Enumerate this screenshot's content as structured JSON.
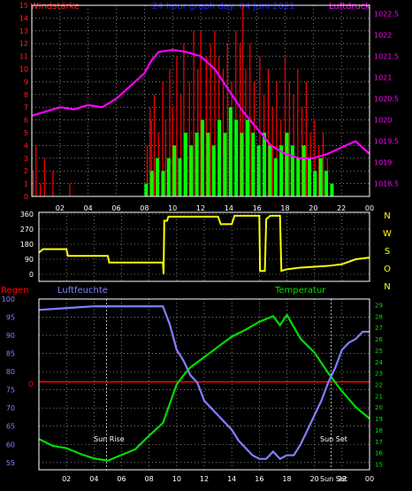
{
  "colors": {
    "background": "#000000",
    "frame": "#ffffff",
    "grid": "#cccccc",
    "wind_label": "#ff2020",
    "wind_gust": "#ff0000",
    "wind_avg": "#00ff00",
    "title": "#2020ff",
    "pressure": "#ff00ff",
    "direction": "#ffff00",
    "direction_letters": "#ffff00",
    "rain": "#ff0000",
    "humidity": "#8080ff",
    "temperature": "#00dd00",
    "hour_tick": "#ffffff",
    "sun_label": "#ffffff"
  },
  "header": {
    "wind_label": "Windstärke",
    "title": "24 hour graph day: 04 Juni 2021",
    "pressure_label": "Luftdruck"
  },
  "bottom_header": {
    "rain_label": "Regen",
    "humidity_label": "Luftfeuchte",
    "temperature_label": "Temperatur"
  },
  "hour_ticks": [
    "02",
    "04",
    "06",
    "08",
    "10",
    "12",
    "14",
    "16",
    "18",
    "20",
    "22",
    "00"
  ],
  "direction_letters": [
    "N",
    "W",
    "S",
    "O",
    "N"
  ],
  "sun_labels": {
    "rise": "Sun Rise",
    "set": "Sun Set",
    "set_short": "Sun Set"
  },
  "chart_data": [
    {
      "type": "bar+line",
      "name": "wind_pressure",
      "left_axis": {
        "label": "Windstärke",
        "ticks": [
          "0",
          "1",
          "2",
          "3",
          "4",
          "5",
          "6",
          "7",
          "8",
          "9",
          "10",
          "11",
          "12",
          "13",
          "14",
          "15"
        ],
        "range": [
          0,
          15
        ]
      },
      "right_axis": {
        "label": "Luftdruck",
        "ticks": [
          "1018.5",
          "1019",
          "1019.5",
          "1020",
          "1020.5",
          "1021",
          "1021.5",
          "1022",
          "1022.5"
        ],
        "range": [
          1018.2,
          1022.7
        ]
      },
      "x_hours": [
        0,
        24
      ],
      "gust_peaks": [
        [
          0.1,
          2
        ],
        [
          0.3,
          4
        ],
        [
          0.6,
          1
        ],
        [
          0.9,
          3
        ],
        [
          1.5,
          2
        ],
        [
          2.7,
          1
        ],
        [
          8.2,
          4
        ],
        [
          8.4,
          7
        ],
        [
          8.5,
          6
        ],
        [
          8.7,
          8
        ],
        [
          9.0,
          5
        ],
        [
          9.3,
          9
        ],
        [
          9.5,
          6
        ],
        [
          9.8,
          10
        ],
        [
          10.0,
          7
        ],
        [
          10.3,
          11
        ],
        [
          10.6,
          8
        ],
        [
          10.8,
          12
        ],
        [
          11.2,
          9
        ],
        [
          11.5,
          13
        ],
        [
          11.8,
          10
        ],
        [
          12.0,
          13
        ],
        [
          12.4,
          11
        ],
        [
          12.7,
          12
        ],
        [
          13.0,
          13
        ],
        [
          13.3,
          11
        ],
        [
          13.6,
          10
        ],
        [
          13.9,
          12
        ],
        [
          14.2,
          9
        ],
        [
          14.5,
          13
        ],
        [
          14.8,
          12
        ],
        [
          15.0,
          15
        ],
        [
          15.2,
          10
        ],
        [
          15.5,
          12
        ],
        [
          15.8,
          9
        ],
        [
          16.2,
          11
        ],
        [
          16.5,
          8
        ],
        [
          16.8,
          10
        ],
        [
          17.1,
          7
        ],
        [
          17.4,
          9
        ],
        [
          17.7,
          6
        ],
        [
          18.0,
          11
        ],
        [
          18.3,
          9
        ],
        [
          18.6,
          8
        ],
        [
          18.9,
          10
        ],
        [
          19.2,
          7
        ],
        [
          19.5,
          9
        ],
        [
          19.8,
          5
        ],
        [
          20.1,
          6
        ],
        [
          20.4,
          4
        ],
        [
          20.7,
          5
        ],
        [
          21.0,
          3
        ]
      ],
      "avg_values": [
        [
          8.0,
          1
        ],
        [
          8.4,
          2
        ],
        [
          8.8,
          3
        ],
        [
          9.2,
          2
        ],
        [
          9.6,
          3
        ],
        [
          10.0,
          4
        ],
        [
          10.4,
          3
        ],
        [
          10.8,
          5
        ],
        [
          11.2,
          4
        ],
        [
          11.6,
          5
        ],
        [
          12.0,
          6
        ],
        [
          12.4,
          5
        ],
        [
          12.8,
          4
        ],
        [
          13.2,
          6
        ],
        [
          13.6,
          5
        ],
        [
          14.0,
          7
        ],
        [
          14.4,
          6
        ],
        [
          14.8,
          5
        ],
        [
          15.2,
          6
        ],
        [
          15.6,
          5
        ],
        [
          16.0,
          4
        ],
        [
          16.4,
          5
        ],
        [
          16.8,
          4
        ],
        [
          17.2,
          3
        ],
        [
          17.6,
          4
        ],
        [
          18.0,
          5
        ],
        [
          18.4,
          4
        ],
        [
          18.8,
          3
        ],
        [
          19.2,
          4
        ],
        [
          19.6,
          3
        ],
        [
          20.0,
          2
        ],
        [
          20.4,
          3
        ],
        [
          20.8,
          2
        ],
        [
          21.2,
          1
        ]
      ],
      "pressure": [
        [
          0,
          1020.1
        ],
        [
          1,
          1020.2
        ],
        [
          2,
          1020.3
        ],
        [
          3,
          1020.25
        ],
        [
          4,
          1020.35
        ],
        [
          5,
          1020.3
        ],
        [
          6,
          1020.5
        ],
        [
          7,
          1020.8
        ],
        [
          8,
          1021.1
        ],
        [
          8.5,
          1021.4
        ],
        [
          9,
          1021.6
        ],
        [
          10,
          1021.65
        ],
        [
          11,
          1021.6
        ],
        [
          12,
          1021.5
        ],
        [
          13,
          1021.2
        ],
        [
          14,
          1020.7
        ],
        [
          15,
          1020.2
        ],
        [
          16,
          1019.8
        ],
        [
          17,
          1019.4
        ],
        [
          18,
          1019.2
        ],
        [
          19,
          1019.1
        ],
        [
          20,
          1019.1
        ],
        [
          21,
          1019.2
        ],
        [
          22,
          1019.35
        ],
        [
          23,
          1019.5
        ],
        [
          24,
          1019.2
        ]
      ]
    },
    {
      "type": "line",
      "name": "wind_direction",
      "left_axis": {
        "ticks": [
          "0",
          "90",
          "180",
          "270",
          "360"
        ],
        "range": [
          0,
          360
        ]
      },
      "x_hours": [
        0,
        24
      ],
      "values": [
        [
          0,
          130
        ],
        [
          0.3,
          150
        ],
        [
          2,
          150
        ],
        [
          2.1,
          110
        ],
        [
          5,
          110
        ],
        [
          5.1,
          70
        ],
        [
          9,
          70
        ],
        [
          9.05,
          0
        ],
        [
          9.1,
          320
        ],
        [
          9.3,
          320
        ],
        [
          9.4,
          345
        ],
        [
          13,
          345
        ],
        [
          13.2,
          300
        ],
        [
          14,
          300
        ],
        [
          14.2,
          350
        ],
        [
          16,
          350
        ],
        [
          16.05,
          20
        ],
        [
          16.4,
          20
        ],
        [
          16.5,
          330
        ],
        [
          16.8,
          350
        ],
        [
          17.5,
          350
        ],
        [
          17.6,
          20
        ],
        [
          18,
          30
        ],
        [
          19,
          40
        ],
        [
          21,
          50
        ],
        [
          22,
          60
        ],
        [
          23,
          90
        ],
        [
          24,
          100
        ]
      ]
    },
    {
      "type": "line",
      "name": "humidity_temperature",
      "left_axis": {
        "label": "Luftfeuchte",
        "ticks": [
          "55",
          "60",
          "65",
          "70",
          "75",
          "80",
          "85",
          "90",
          "95",
          "100"
        ],
        "range": [
          53,
          100
        ]
      },
      "right_axis": {
        "label": "Temperatur",
        "ticks": [
          "15",
          "16",
          "17",
          "18",
          "19",
          "20",
          "21",
          "22",
          "23",
          "24",
          "25",
          "26",
          "27",
          "28",
          "29"
        ],
        "range": [
          14.5,
          29.5
        ]
      },
      "rain_value": 0,
      "rain_axis_label": "0",
      "x_hours": [
        0,
        24
      ],
      "humidity": [
        [
          0,
          97
        ],
        [
          2,
          97.5
        ],
        [
          4,
          98
        ],
        [
          6,
          98
        ],
        [
          7,
          98
        ],
        [
          8,
          98
        ],
        [
          9,
          98
        ],
        [
          9.5,
          93
        ],
        [
          10,
          86
        ],
        [
          10.5,
          83
        ],
        [
          11,
          79
        ],
        [
          11.5,
          77
        ],
        [
          12,
          72
        ],
        [
          12.5,
          70
        ],
        [
          13,
          68
        ],
        [
          13.5,
          66
        ],
        [
          14,
          64
        ],
        [
          14.5,
          61
        ],
        [
          15,
          59
        ],
        [
          15.5,
          57
        ],
        [
          16,
          56
        ],
        [
          16.5,
          56
        ],
        [
          17,
          58
        ],
        [
          17.5,
          56
        ],
        [
          18,
          57
        ],
        [
          18.5,
          57
        ],
        [
          19,
          60
        ],
        [
          19.5,
          64
        ],
        [
          20,
          68
        ],
        [
          20.5,
          72
        ],
        [
          21,
          77
        ],
        [
          21.5,
          81
        ],
        [
          22,
          86
        ],
        [
          22.5,
          88
        ],
        [
          23,
          89
        ],
        [
          23.5,
          91
        ],
        [
          24,
          91
        ]
      ],
      "temperature": [
        [
          0,
          17.2
        ],
        [
          1,
          16.6
        ],
        [
          2,
          16.4
        ],
        [
          3,
          15.9
        ],
        [
          4,
          15.5
        ],
        [
          5,
          15.3
        ],
        [
          6,
          15.8
        ],
        [
          7,
          16.3
        ],
        [
          8,
          17.5
        ],
        [
          9,
          18.6
        ],
        [
          10,
          22
        ],
        [
          10.5,
          22.8
        ],
        [
          11,
          23.5
        ],
        [
          12,
          24.4
        ],
        [
          13,
          25.3
        ],
        [
          14,
          26.2
        ],
        [
          15,
          26.8
        ],
        [
          16,
          27.5
        ],
        [
          17,
          28
        ],
        [
          17.5,
          27.2
        ],
        [
          18,
          28.1
        ],
        [
          19,
          26
        ],
        [
          20,
          24.8
        ],
        [
          21,
          23
        ],
        [
          22,
          21.4
        ],
        [
          23,
          20
        ],
        [
          24,
          19
        ]
      ],
      "sun_rise_hour": 4.9,
      "sun_set_hour": 21.2
    }
  ]
}
